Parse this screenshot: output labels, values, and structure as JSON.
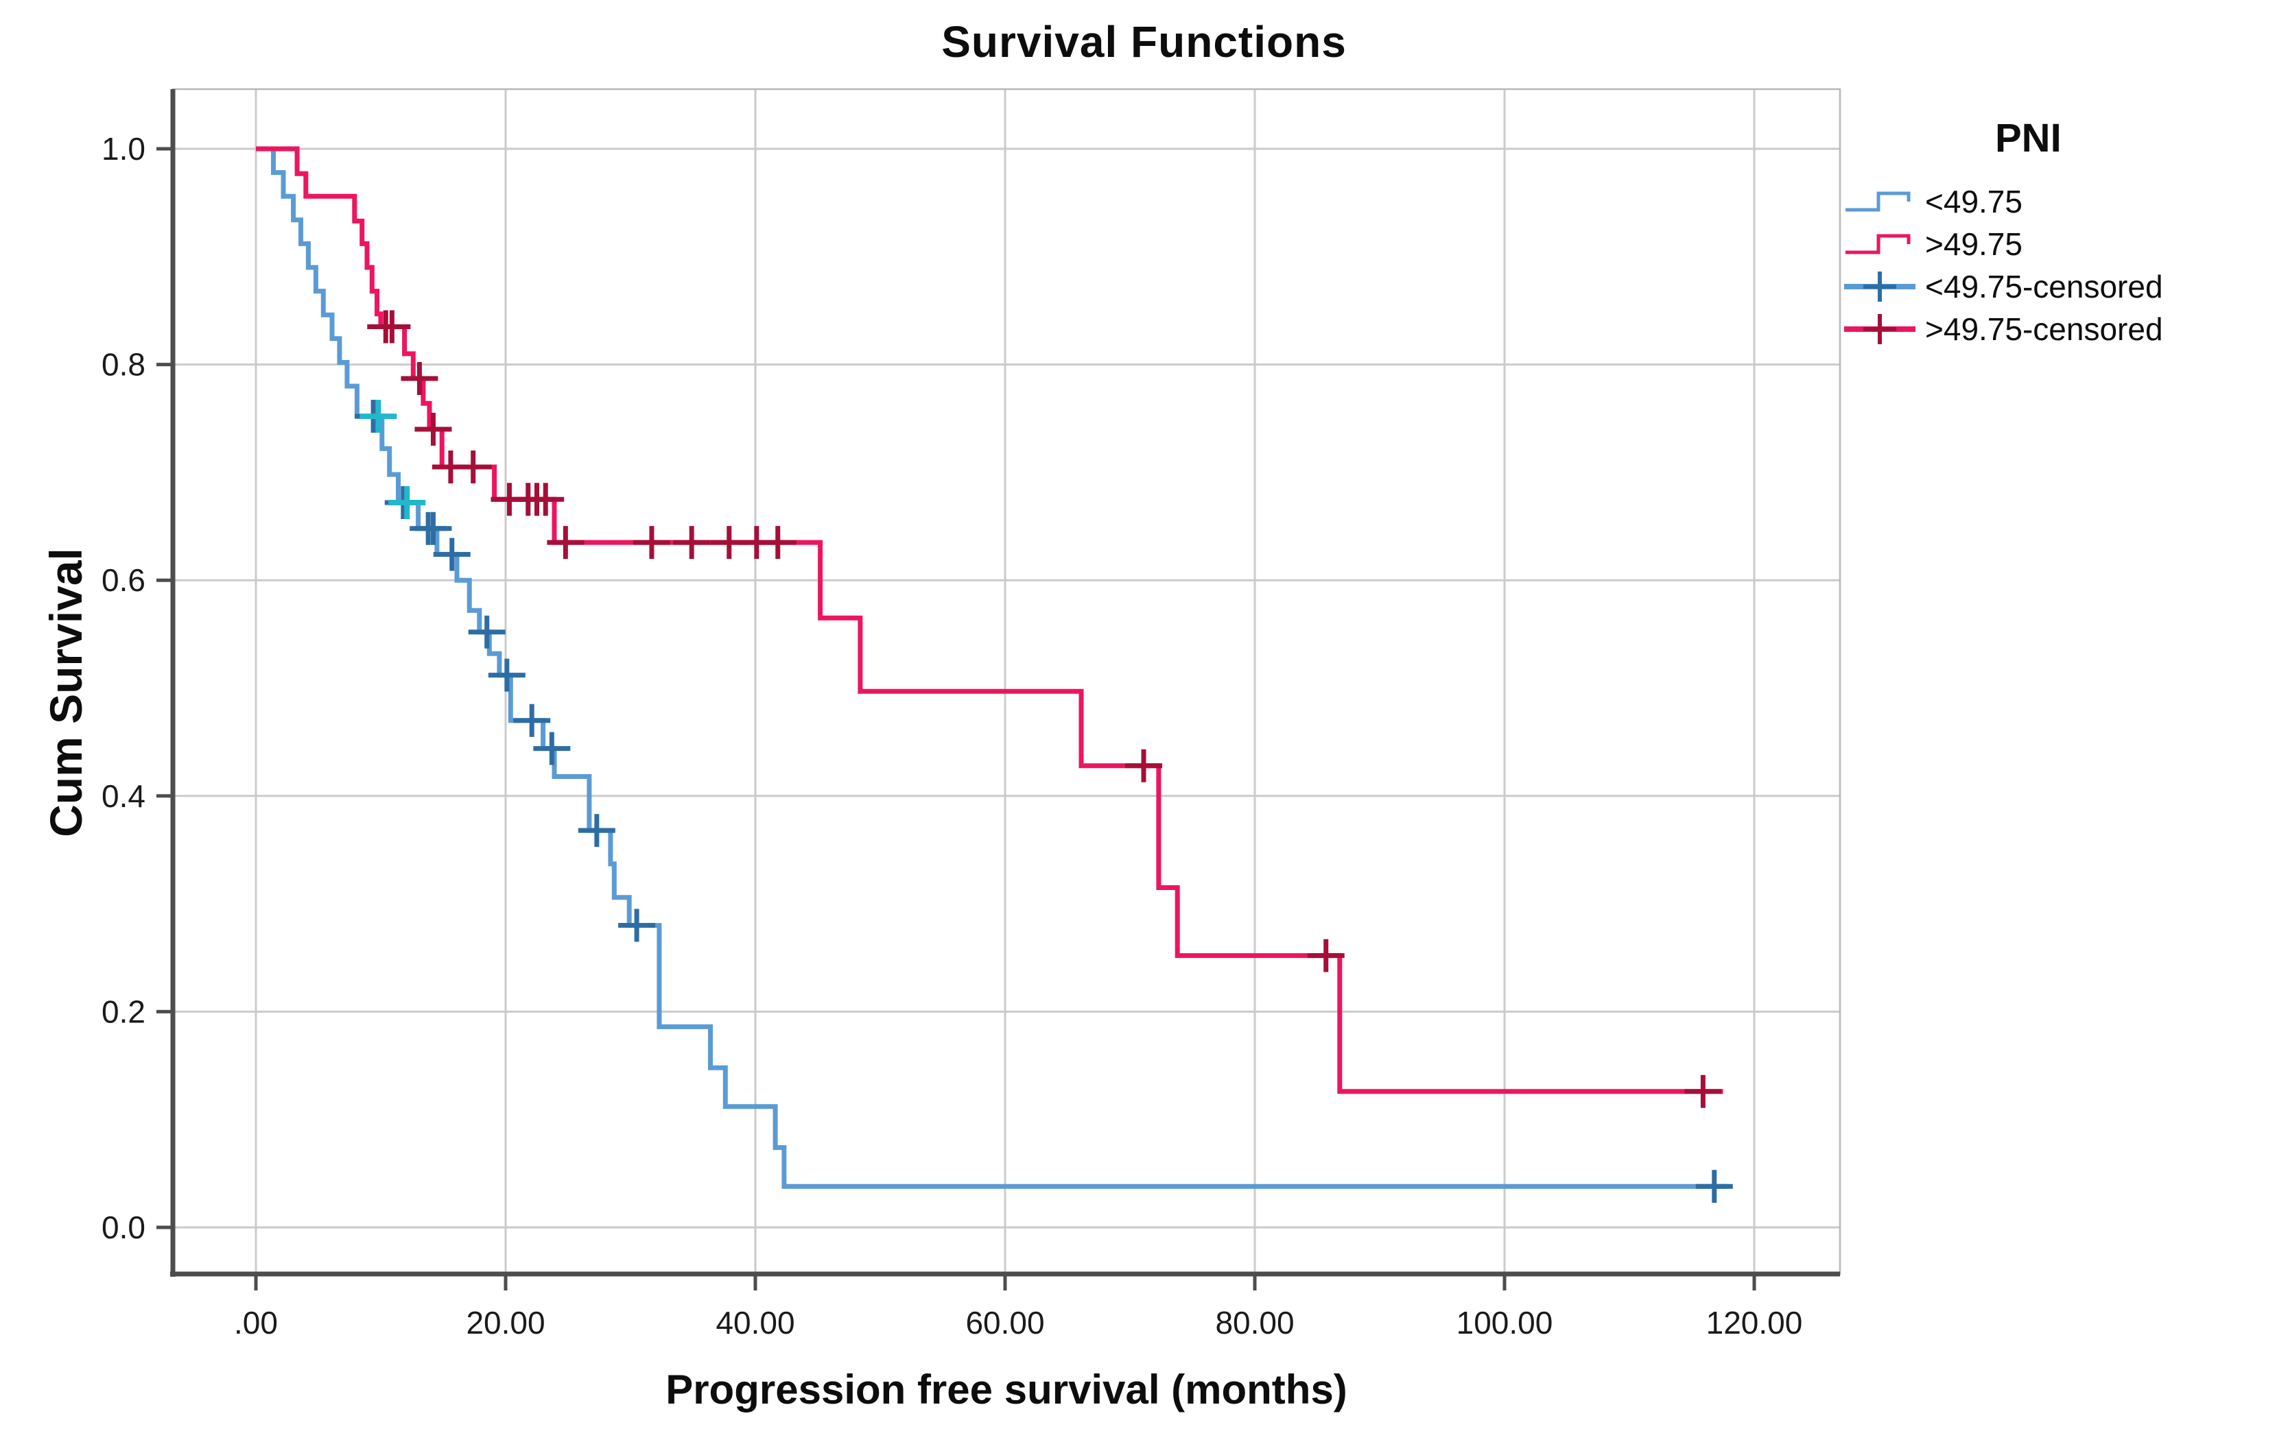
{
  "chart_data": {
    "type": "line",
    "subtype": "kaplan-meier-step",
    "title": "Survival Functions",
    "xlabel": "Progression free survival (months)",
    "ylabel": "Cum Survival",
    "legend_title": "PNI",
    "grid": true,
    "legend_position": "right",
    "x_ticks": [
      ".00",
      "20.00",
      "40.00",
      "60.00",
      "80.00",
      "100.00",
      "120.00"
    ],
    "x_tick_values": [
      0,
      20,
      40,
      60,
      80,
      100,
      120
    ],
    "y_ticks": [
      "1.0",
      "0.8",
      "0.6",
      "0.4",
      "0.2",
      "0.0"
    ],
    "y_tick_values": [
      1.0,
      0.8,
      0.6,
      0.4,
      0.2,
      0.0
    ],
    "xlim": [
      -6.6,
      126.9
    ],
    "ylim": [
      -0.043,
      1.055
    ],
    "colors": {
      "group_lt": "#5b9bd5",
      "group_lt_censor": "#2e6da4",
      "group_gt": "#ed155e",
      "group_gt_censor": "#a50f38",
      "overlap_censor": "#23b7cb",
      "gridline": "#cbcbcb",
      "frame": "#b7b7b7",
      "axis": "#4d4d4d",
      "text": "#1a1a1a"
    },
    "series": [
      {
        "name": "<49.75",
        "color": "#5b9bd5",
        "censor_color": "#2e6da4",
        "start": [
          0,
          1.0
        ],
        "end_x": 117.8,
        "steps": [
          [
            1.4,
            0.978
          ],
          [
            2.2,
            0.956
          ],
          [
            3.0,
            0.934
          ],
          [
            3.6,
            0.912
          ],
          [
            4.2,
            0.89
          ],
          [
            4.8,
            0.868
          ],
          [
            5.4,
            0.846
          ],
          [
            6.1,
            0.824
          ],
          [
            6.7,
            0.802
          ],
          [
            7.3,
            0.78
          ],
          [
            8.1,
            0.752
          ],
          [
            10.1,
            0.722
          ],
          [
            10.7,
            0.698
          ],
          [
            11.4,
            0.672
          ],
          [
            13.0,
            0.648
          ],
          [
            14.5,
            0.624
          ],
          [
            16.1,
            0.6
          ],
          [
            17.1,
            0.572
          ],
          [
            17.9,
            0.552
          ],
          [
            18.7,
            0.532
          ],
          [
            19.5,
            0.512
          ],
          [
            20.4,
            0.47
          ],
          [
            23.0,
            0.444
          ],
          [
            23.9,
            0.418
          ],
          [
            26.7,
            0.368
          ],
          [
            28.4,
            0.337
          ],
          [
            28.7,
            0.306
          ],
          [
            29.9,
            0.28
          ],
          [
            32.3,
            0.186
          ],
          [
            36.4,
            0.148
          ],
          [
            37.6,
            0.112
          ],
          [
            41.6,
            0.074
          ],
          [
            42.3,
            0.038
          ]
        ],
        "censors": [
          [
            9.4,
            0.752
          ],
          [
            11.8,
            0.672
          ],
          [
            13.8,
            0.648
          ],
          [
            14.2,
            0.648
          ],
          [
            15.7,
            0.624
          ],
          [
            18.5,
            0.552
          ],
          [
            20.1,
            0.512
          ],
          [
            22.1,
            0.47
          ],
          [
            23.7,
            0.444
          ],
          [
            27.3,
            0.368
          ],
          [
            30.5,
            0.28
          ],
          [
            116.8,
            0.038
          ]
        ],
        "overlap_censors": [
          [
            9.8,
            0.752
          ],
          [
            12.1,
            0.672
          ]
        ]
      },
      {
        "name": ">49.75",
        "color": "#ed155e",
        "censor_color": "#a50f38",
        "start": [
          0,
          1.0
        ],
        "end_x": 117.5,
        "steps": [
          [
            3.3,
            0.977
          ],
          [
            4.0,
            0.956
          ],
          [
            7.9,
            0.933
          ],
          [
            8.5,
            0.912
          ],
          [
            8.9,
            0.89
          ],
          [
            9.3,
            0.868
          ],
          [
            9.7,
            0.847
          ],
          [
            10.0,
            0.835
          ],
          [
            11.9,
            0.81
          ],
          [
            12.6,
            0.787
          ],
          [
            13.4,
            0.764
          ],
          [
            13.9,
            0.74
          ],
          [
            14.9,
            0.705
          ],
          [
            19.1,
            0.675
          ],
          [
            23.9,
            0.635
          ],
          [
            45.2,
            0.565
          ],
          [
            48.4,
            0.497
          ],
          [
            66.1,
            0.428
          ],
          [
            72.3,
            0.315
          ],
          [
            73.8,
            0.252
          ],
          [
            86.8,
            0.126
          ]
        ],
        "censors": [
          [
            10.4,
            0.835
          ],
          [
            10.9,
            0.835
          ],
          [
            13.1,
            0.787
          ],
          [
            14.2,
            0.74
          ],
          [
            15.6,
            0.705
          ],
          [
            17.4,
            0.705
          ],
          [
            20.3,
            0.675
          ],
          [
            21.8,
            0.675
          ],
          [
            22.5,
            0.675
          ],
          [
            23.2,
            0.675
          ],
          [
            24.8,
            0.635
          ],
          [
            31.7,
            0.635
          ],
          [
            34.9,
            0.635
          ],
          [
            37.9,
            0.635
          ],
          [
            40.1,
            0.635
          ],
          [
            41.8,
            0.635
          ],
          [
            71.1,
            0.428
          ],
          [
            85.7,
            0.252
          ],
          [
            115.9,
            0.126
          ]
        ],
        "overlap_censors": []
      }
    ],
    "legend": [
      {
        "label": "<49.75",
        "type": "line",
        "series": 0
      },
      {
        "label": ">49.75",
        "type": "line",
        "series": 1
      },
      {
        "label": "<49.75-censored",
        "type": "censored",
        "series": 0
      },
      {
        "label": ">49.75-censored",
        "type": "censored",
        "series": 1
      }
    ]
  }
}
